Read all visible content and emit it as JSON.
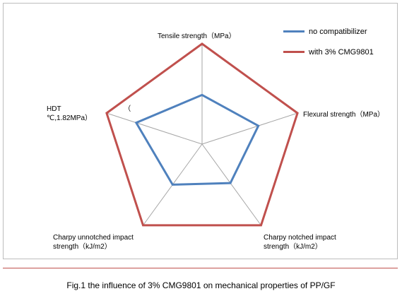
{
  "chart_data": {
    "type": "radar",
    "axes": [
      "Tensile strength（MPa）",
      "Flexural strength（MPa）",
      "Charpy notched impact strength（kJ/m2）",
      "Charpy unnotched impact strength（kJ/m2）",
      "HDT                                （\n℃,1.82MPa）"
    ],
    "series": [
      {
        "name": "no compatibilizer",
        "color": "#4f81bd",
        "values": [
          0.49,
          0.59,
          0.48,
          0.5,
          0.69
        ]
      },
      {
        "name": "with 3% CMG9801",
        "color": "#c0504d",
        "values": [
          1.0,
          1.0,
          1.0,
          1.0,
          1.0
        ]
      }
    ],
    "rlim": [
      0,
      1
    ],
    "grid": "spokes",
    "legend": "top-right"
  },
  "caption": "Fig.1 the influence of 3% CMG9801 on mechanical properties of PP/GF"
}
